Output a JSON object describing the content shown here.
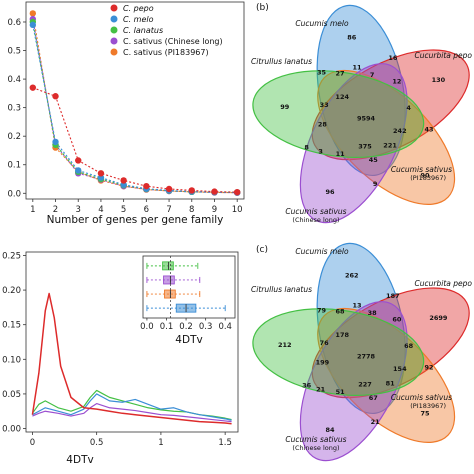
{
  "palette": {
    "pepo": "#dd2b2b",
    "melo": "#3b8ed6",
    "lanatus": "#44c044",
    "sativus_cl": "#9b4fd0",
    "sativus_pi": "#ef7a2a"
  },
  "chart_data": [
    {
      "type": "line",
      "xlabel": "Number of genes per gene family",
      "ylabel": "",
      "x": [
        1,
        2,
        3,
        4,
        5,
        6,
        7,
        8,
        9,
        10
      ],
      "xticks": [
        "1",
        "2",
        "3",
        "4",
        "5",
        "6",
        "7",
        "8",
        "9",
        "10"
      ],
      "yticks": [
        "0.0",
        "0.1",
        "0.2",
        "0.3",
        "0.4",
        "0.5",
        "0.6"
      ],
      "xlim": [
        0.7,
        10.3
      ],
      "ylim": [
        -0.02,
        0.67
      ],
      "legend_position": "top-right",
      "series": [
        {
          "name": "C. pepo",
          "color_key": "pepo",
          "values": [
            0.37,
            0.34,
            0.115,
            0.07,
            0.045,
            0.025,
            0.015,
            0.01,
            0.006,
            0.004
          ]
        },
        {
          "name": "C. melo",
          "color_key": "melo",
          "values": [
            0.59,
            0.18,
            0.08,
            0.055,
            0.03,
            0.016,
            0.01,
            0.006,
            0.004,
            0.003
          ]
        },
        {
          "name": "C. lanatus",
          "color_key": "lanatus",
          "values": [
            0.6,
            0.17,
            0.075,
            0.05,
            0.028,
            0.015,
            0.009,
            0.005,
            0.004,
            0.003
          ]
        },
        {
          "name": "C. sativus (Chinese long)",
          "color_key": "sativus_cl",
          "values": [
            0.61,
            0.17,
            0.07,
            0.048,
            0.025,
            0.014,
            0.008,
            0.005,
            0.003,
            0.002
          ]
        },
        {
          "name": "C. sativus (PI183967)",
          "color_key": "sativus_pi",
          "values": [
            0.63,
            0.16,
            0.075,
            0.045,
            0.025,
            0.013,
            0.008,
            0.005,
            0.003,
            0.002
          ]
        }
      ]
    },
    {
      "type": "line",
      "xlabel": "4DTv",
      "ylabel": "",
      "xticks": [
        "0",
        "0.5",
        "1",
        "1.5"
      ],
      "yticks": [
        "0.00",
        "0.05",
        "0.10",
        "0.15",
        "0.20",
        "0.25"
      ],
      "xlim": [
        -0.05,
        1.6
      ],
      "ylim": [
        -0.005,
        0.255
      ],
      "series": [
        {
          "name": "C. pepo",
          "color_key": "pepo",
          "x": [
            0,
            0.05,
            0.1,
            0.13,
            0.17,
            0.22,
            0.3,
            0.4,
            0.5,
            0.6,
            0.7,
            0.8,
            0.9,
            1.0,
            1.1,
            1.2,
            1.3,
            1.4,
            1.5,
            1.55
          ],
          "values": [
            0.02,
            0.08,
            0.17,
            0.195,
            0.16,
            0.09,
            0.045,
            0.03,
            0.028,
            0.025,
            0.022,
            0.02,
            0.018,
            0.016,
            0.014,
            0.012,
            0.01,
            0.009,
            0.008,
            0.007
          ]
        },
        {
          "name": "C. melo",
          "color_key": "melo",
          "x": [
            0,
            0.05,
            0.1,
            0.2,
            0.3,
            0.4,
            0.45,
            0.5,
            0.55,
            0.6,
            0.7,
            0.8,
            0.9,
            1.0,
            1.1,
            1.2,
            1.3,
            1.4,
            1.5,
            1.55
          ],
          "values": [
            0.02,
            0.025,
            0.03,
            0.025,
            0.02,
            0.028,
            0.04,
            0.05,
            0.045,
            0.04,
            0.038,
            0.042,
            0.035,
            0.028,
            0.03,
            0.024,
            0.02,
            0.017,
            0.014,
            0.012
          ]
        },
        {
          "name": "C. lanatus",
          "color_key": "lanatus",
          "x": [
            0,
            0.05,
            0.1,
            0.2,
            0.3,
            0.4,
            0.45,
            0.5,
            0.55,
            0.6,
            0.7,
            0.8,
            0.9,
            1.0,
            1.1,
            1.2,
            1.3,
            1.4,
            1.5,
            1.55
          ],
          "values": [
            0.022,
            0.035,
            0.04,
            0.03,
            0.025,
            0.032,
            0.045,
            0.055,
            0.05,
            0.045,
            0.04,
            0.035,
            0.03,
            0.027,
            0.025,
            0.024,
            0.02,
            0.018,
            0.015,
            0.013
          ]
        },
        {
          "name": "C. sativus (Chinese long)",
          "color_key": "sativus_cl",
          "x": [
            0,
            0.05,
            0.1,
            0.2,
            0.3,
            0.4,
            0.45,
            0.5,
            0.55,
            0.6,
            0.7,
            0.8,
            0.9,
            1.0,
            1.1,
            1.2,
            1.3,
            1.4,
            1.5,
            1.55
          ],
          "values": [
            0.018,
            0.022,
            0.025,
            0.022,
            0.018,
            0.022,
            0.03,
            0.036,
            0.033,
            0.03,
            0.028,
            0.026,
            0.023,
            0.02,
            0.019,
            0.017,
            0.015,
            0.013,
            0.011,
            0.01
          ]
        }
      ],
      "inset": {
        "type": "boxplot",
        "xlabel": "4DTv",
        "xticks": [
          "0.0",
          "0.1",
          "0.2",
          "0.3",
          "0.4"
        ],
        "xlim": [
          -0.02,
          0.45
        ],
        "boxes": [
          {
            "color_key": "lanatus",
            "min": 0.0,
            "q1": 0.08,
            "median": 0.11,
            "q3": 0.135,
            "max": 0.26
          },
          {
            "color_key": "sativus_cl",
            "min": 0.0,
            "q1": 0.085,
            "median": 0.12,
            "q3": 0.14,
            "max": 0.27
          },
          {
            "color_key": "sativus_pi",
            "min": 0.0,
            "q1": 0.09,
            "median": 0.12,
            "q3": 0.145,
            "max": 0.27
          },
          {
            "color_key": "melo",
            "min": 0.0,
            "q1": 0.15,
            "median": 0.2,
            "q3": 0.25,
            "max": 0.4
          }
        ]
      }
    },
    {
      "type": "venn",
      "panel_label": "(b)",
      "sets": [
        {
          "name": "Cucumis melo",
          "color_key": "melo"
        },
        {
          "name": "Cucurbita pepo",
          "color_key": "pepo"
        },
        {
          "name": "Cucumis sativus",
          "sub": "(PI183967)",
          "color_key": "sativus_pi"
        },
        {
          "name": "Cucumis sativus",
          "sub": "(Chinese long)",
          "color_key": "sativus_cl"
        },
        {
          "name": "Citrullus lanatus",
          "color_key": "lanatus"
        }
      ],
      "counts": [
        "86",
        "130",
        "90",
        "96",
        "99",
        "16",
        "12",
        "43",
        "9",
        "8",
        "35",
        "7",
        "4",
        "242",
        "221",
        "45",
        "375",
        "11",
        "3",
        "28",
        "33",
        "124",
        "11",
        "27",
        "9594"
      ]
    },
    {
      "type": "venn",
      "panel_label": "(c)",
      "sets": [
        {
          "name": "Cucumis melo",
          "color_key": "melo"
        },
        {
          "name": "Cucurbita pepo",
          "color_key": "pepo"
        },
        {
          "name": "Cucumis sativus",
          "sub": "(PI183967)",
          "color_key": "sativus_pi"
        },
        {
          "name": "Cucumis sativus",
          "sub": "(Chinese long)",
          "color_key": "sativus_cl"
        },
        {
          "name": "Citrullus lanatus",
          "color_key": "lanatus"
        }
      ],
      "counts": [
        "262",
        "2699",
        "75",
        "84",
        "212",
        "187",
        "60",
        "92",
        "21",
        "36",
        "79",
        "38",
        "68",
        "154",
        "81",
        "67",
        "227",
        "51",
        "21",
        "199",
        "76",
        "178",
        "13",
        "68",
        "2778"
      ]
    }
  ]
}
